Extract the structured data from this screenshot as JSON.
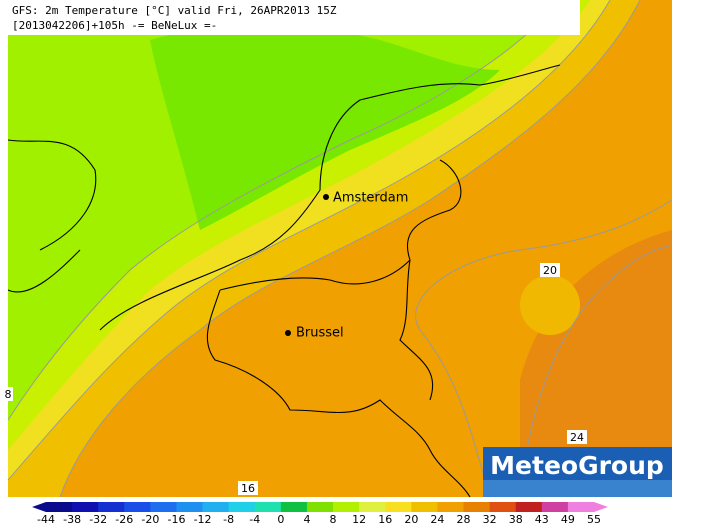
{
  "header": {
    "line1": "GFS: 2m Temperature [°C] valid Fri, 26APR2013 15Z",
    "line2": "[2013042206]+105h -= BeNeLux =-"
  },
  "cities": [
    "Amsterdam",
    "Brussel"
  ],
  "contour_labels": [
    "20",
    "24",
    "16",
    "8"
  ],
  "logo": "MeteoGroup",
  "colorbar": {
    "labels": [
      "-44",
      "-38",
      "-32",
      "-26",
      "-20",
      "-16",
      "-12",
      "-8",
      "-4",
      "0",
      "4",
      "8",
      "12",
      "16",
      "20",
      "24",
      "28",
      "32",
      "38",
      "43",
      "49",
      "55"
    ],
    "colors": [
      "#0a0a8c",
      "#1010b0",
      "#1530d0",
      "#1a4ee8",
      "#1e6ef0",
      "#2090f0",
      "#20b0f0",
      "#20d0e8",
      "#20e0b0",
      "#10c040",
      "#40d010",
      "#80e000",
      "#b0f000",
      "#e0f040",
      "#f8e020",
      "#f0c000",
      "#f0a000",
      "#e88000",
      "#e05010",
      "#c02020",
      "#d040a0",
      "#f080e0"
    ]
  }
}
